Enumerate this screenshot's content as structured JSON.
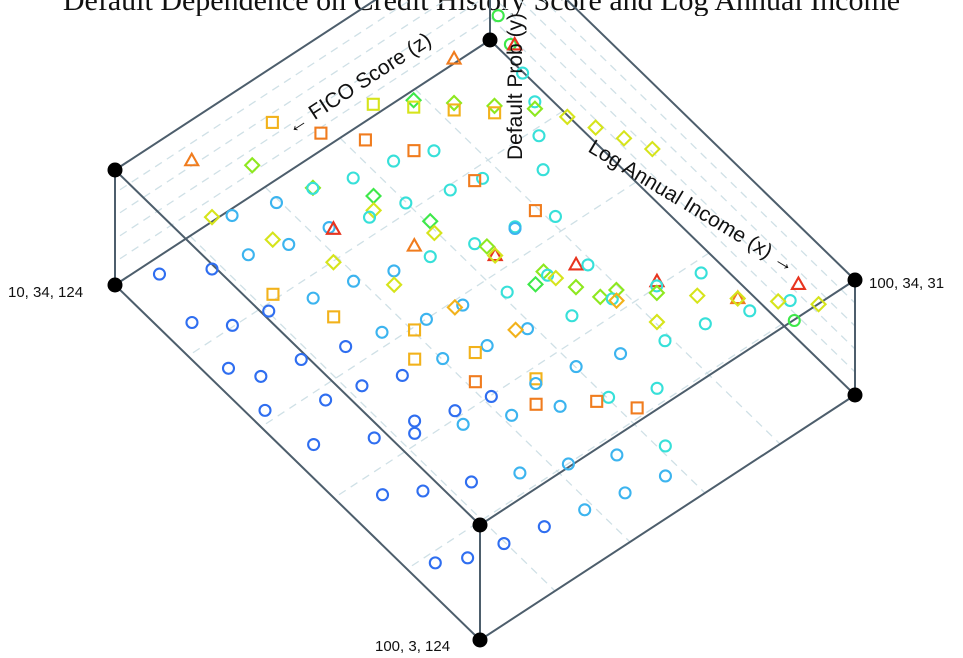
{
  "title": "Default Dependence on Credit History Score and Log Annual Income",
  "chart_data": {
    "type": "scatter",
    "subtype": "3d-box",
    "axes": {
      "x": {
        "label": "Log Annual Income (x)",
        "arrow": "→",
        "range": [
          10,
          100
        ]
      },
      "y": {
        "label": "Default Prob (y)",
        "range": [
          3,
          34
        ]
      },
      "z": {
        "label": "FICO Score (z)",
        "arrow": "←",
        "range": [
          31,
          124
        ]
      }
    },
    "corner_labels": {
      "left": "10, 34, 124",
      "right": "100, 34, 31",
      "bottom": "100, 3, 124"
    },
    "grid": true,
    "marker_rule": "circle for low default probability, diamond/square for medium, triangle for high; color from blue (low) to red (high)",
    "colormap": [
      "#1a1fd1",
      "#2f6ef0",
      "#3cb4ef",
      "#37e0d9",
      "#3ee84a",
      "#8ee81f",
      "#d6e41b",
      "#f2b21b",
      "#f07c1e",
      "#e8341f"
    ],
    "series": [
      {
        "name": "circle",
        "marker": "circle",
        "points": [
          [
            60,
            5,
            110
          ],
          [
            62,
            6,
            102
          ],
          [
            65,
            7,
            95
          ],
          [
            67,
            8,
            88
          ],
          [
            70,
            9,
            80
          ],
          [
            72,
            10,
            72
          ],
          [
            75,
            11,
            64
          ],
          [
            78,
            12,
            56
          ],
          [
            80,
            13,
            48
          ],
          [
            83,
            14,
            40
          ],
          [
            86,
            15,
            33
          ],
          [
            90,
            16,
            36
          ],
          [
            50,
            6,
            112
          ],
          [
            52,
            7,
            105
          ],
          [
            55,
            8,
            98
          ],
          [
            57,
            9,
            90
          ],
          [
            60,
            10,
            82
          ],
          [
            62,
            11,
            74
          ],
          [
            65,
            12,
            66
          ],
          [
            67,
            13,
            58
          ],
          [
            70,
            14,
            50
          ],
          [
            73,
            15,
            42
          ],
          [
            40,
            6,
            118
          ],
          [
            42,
            7,
            110
          ],
          [
            45,
            8,
            102
          ],
          [
            47,
            9,
            95
          ],
          [
            50,
            10,
            87
          ],
          [
            52,
            11,
            80
          ],
          [
            55,
            12,
            72
          ],
          [
            57,
            13,
            64
          ],
          [
            60,
            14,
            57
          ],
          [
            30,
            7,
            115
          ],
          [
            32,
            8,
            108
          ],
          [
            35,
            9,
            100
          ],
          [
            37,
            10,
            92
          ],
          [
            40,
            11,
            85
          ],
          [
            42,
            12,
            78
          ],
          [
            45,
            13,
            70
          ],
          [
            47,
            14,
            62
          ],
          [
            50,
            15,
            55
          ],
          [
            20,
            8,
            110
          ],
          [
            22,
            9,
            103
          ],
          [
            25,
            10,
            96
          ],
          [
            27,
            11,
            88
          ],
          [
            30,
            12,
            81
          ],
          [
            32,
            13,
            74
          ],
          [
            35,
            14,
            66
          ],
          [
            37,
            15,
            60
          ],
          [
            15,
            10,
            100
          ],
          [
            18,
            11,
            92
          ],
          [
            20,
            12,
            85
          ],
          [
            23,
            13,
            78
          ],
          [
            25,
            14,
            70
          ],
          [
            28,
            15,
            63
          ],
          [
            85,
            5,
            120
          ],
          [
            88,
            6,
            115
          ],
          [
            90,
            7,
            108
          ],
          [
            92,
            8,
            100
          ],
          [
            94,
            9,
            92
          ],
          [
            96,
            10,
            84
          ],
          [
            98,
            11,
            76
          ],
          [
            70,
            6,
            118
          ],
          [
            74,
            7,
            112
          ],
          [
            78,
            8,
            104
          ],
          [
            82,
            9,
            96
          ],
          [
            86,
            10,
            88
          ],
          [
            90,
            11,
            80
          ],
          [
            94,
            12,
            72
          ],
          [
            55,
            5,
            120
          ],
          [
            45,
            5,
            122
          ],
          [
            35,
            5,
            121
          ],
          [
            25,
            6,
            120
          ],
          [
            15,
            7,
            118
          ],
          [
            65,
            8,
            105
          ],
          [
            69,
            9,
            97
          ],
          [
            73,
            10,
            89
          ],
          [
            77,
            11,
            81
          ],
          [
            81,
            12,
            73
          ],
          [
            85,
            13,
            65
          ],
          [
            45,
            10,
            60
          ],
          [
            40,
            12,
            48
          ],
          [
            35,
            13,
            44
          ],
          [
            30,
            14,
            40
          ],
          [
            25,
            15,
            38
          ],
          [
            20,
            16,
            36
          ],
          [
            15,
            17,
            34
          ]
        ]
      },
      {
        "name": "diamond",
        "marker": "diamond",
        "points": [
          [
            20,
            18,
            60
          ],
          [
            25,
            19,
            55
          ],
          [
            30,
            20,
            50
          ],
          [
            35,
            21,
            45
          ],
          [
            40,
            22,
            42
          ],
          [
            45,
            23,
            40
          ],
          [
            50,
            24,
            38
          ],
          [
            55,
            25,
            36
          ],
          [
            60,
            18,
            70
          ],
          [
            65,
            19,
            65
          ],
          [
            70,
            20,
            60
          ],
          [
            75,
            21,
            55
          ],
          [
            80,
            22,
            50
          ],
          [
            85,
            23,
            45
          ],
          [
            90,
            24,
            40
          ],
          [
            95,
            25,
            35
          ],
          [
            30,
            17,
            80
          ],
          [
            40,
            18,
            76
          ],
          [
            50,
            19,
            72
          ],
          [
            60,
            20,
            68
          ],
          [
            70,
            21,
            64
          ],
          [
            80,
            22,
            60
          ],
          [
            15,
            20,
            95
          ],
          [
            25,
            21,
            90
          ],
          [
            35,
            22,
            85
          ],
          [
            45,
            23,
            80
          ],
          [
            55,
            24,
            75
          ],
          [
            65,
            25,
            70
          ],
          [
            75,
            26,
            65
          ],
          [
            20,
            22,
            110
          ],
          [
            30,
            23,
            105
          ],
          [
            40,
            24,
            100
          ],
          [
            50,
            25,
            95
          ],
          [
            60,
            26,
            90
          ],
          [
            70,
            27,
            85
          ]
        ]
      },
      {
        "name": "square",
        "marker": "square",
        "points": [
          [
            20,
            24,
            70
          ],
          [
            25,
            25,
            65
          ],
          [
            30,
            26,
            60
          ],
          [
            35,
            27,
            55
          ],
          [
            60,
            27,
            100
          ],
          [
            70,
            28,
            95
          ],
          [
            80,
            28,
            90
          ],
          [
            90,
            29,
            85
          ],
          [
            95,
            29,
            80
          ],
          [
            40,
            26,
            115
          ],
          [
            50,
            27,
            110
          ],
          [
            65,
            28,
            105
          ],
          [
            75,
            29,
            100
          ],
          [
            85,
            30,
            95
          ],
          [
            15,
            28,
            90
          ],
          [
            22,
            29,
            85
          ],
          [
            28,
            30,
            80
          ],
          [
            35,
            31,
            75
          ],
          [
            45,
            30,
            70
          ],
          [
            55,
            29,
            65
          ]
        ]
      },
      {
        "name": "triangle",
        "marker": "triangle",
        "points": [
          [
            15,
            32,
            110
          ],
          [
            40,
            33,
            100
          ],
          [
            50,
            32,
            90
          ],
          [
            60,
            33,
            80
          ],
          [
            70,
            34,
            70
          ],
          [
            80,
            33,
            60
          ],
          [
            90,
            32,
            50
          ],
          [
            95,
            34,
            40
          ],
          [
            25,
            31,
            55
          ],
          [
            30,
            33,
            45
          ]
        ]
      }
    ]
  }
}
